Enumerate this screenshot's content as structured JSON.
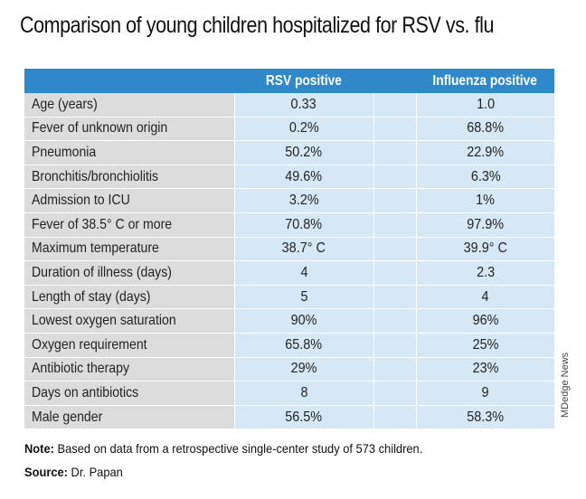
{
  "title": "Comparison of young children hospitalized for RSV vs. flu",
  "chart_data": {
    "type": "table",
    "columns": [
      "",
      "RSV positive",
      "Influenza positive"
    ],
    "rows": [
      {
        "label": "Age (years)",
        "rsv": "0.33",
        "flu": "1.0"
      },
      {
        "label": "Fever of unknown origin",
        "rsv": "0.2%",
        "flu": "68.8%"
      },
      {
        "label": "Pneumonia",
        "rsv": "50.2%",
        "flu": "22.9%"
      },
      {
        "label": "Bronchitis/bronchiolitis",
        "rsv": "49.6%",
        "flu": "6.3%"
      },
      {
        "label": "Admission to ICU",
        "rsv": "3.2%",
        "flu": "1%"
      },
      {
        "label": "Fever of 38.5° C or more",
        "rsv": "70.8%",
        "flu": "97.9%"
      },
      {
        "label": "Maximum temperature",
        "rsv": "38.7° C",
        "flu": "39.9° C"
      },
      {
        "label": "Duration of illness (days)",
        "rsv": "4",
        "flu": "2.3"
      },
      {
        "label": "Length of stay (days)",
        "rsv": "5",
        "flu": "4"
      },
      {
        "label": "Lowest oxygen saturation",
        "rsv": "90%",
        "flu": "96%"
      },
      {
        "label": "Oxygen requirement",
        "rsv": "65.8%",
        "flu": "25%"
      },
      {
        "label": "Antibiotic therapy",
        "rsv": "29%",
        "flu": "23%"
      },
      {
        "label": "Days on antibiotics",
        "rsv": "8",
        "flu": "9"
      },
      {
        "label": "Male gender",
        "rsv": "56.5%",
        "flu": "58.3%"
      }
    ]
  },
  "note_label": "Note:",
  "note_text": " Based on data from a retrospective single-center study of 573 children.",
  "source_label": "Source:",
  "source_text": " Dr. Papan",
  "credit": "MDedge News",
  "colors": {
    "header": "#2f88c9",
    "label_cell": "#dcdcdc",
    "value_cell": "#d6e7f6"
  }
}
